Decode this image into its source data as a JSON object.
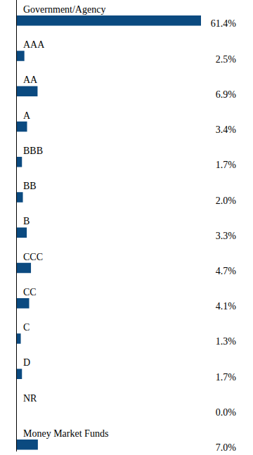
{
  "chart_data": {
    "type": "bar",
    "orientation": "horizontal",
    "categories": [
      "Government/Agency",
      "AAA",
      "AA",
      "A",
      "BBB",
      "BB",
      "B",
      "CCC",
      "CC",
      "C",
      "D",
      "NR",
      "Money Market Funds"
    ],
    "values": [
      61.4,
      2.5,
      6.9,
      3.4,
      1.7,
      2.0,
      3.3,
      4.7,
      4.1,
      1.3,
      1.7,
      0.0,
      7.0
    ],
    "value_labels": [
      "61.4%",
      "2.5%",
      "6.9%",
      "3.4%",
      "1.7%",
      "2.0%",
      "3.3%",
      "4.7%",
      "4.1%",
      "1.3%",
      "1.7%",
      "0.0%",
      "7.0%"
    ],
    "color": "#0b4a80",
    "xlim": [
      0,
      61.4
    ],
    "data_labels": true,
    "tick_labels": false
  }
}
